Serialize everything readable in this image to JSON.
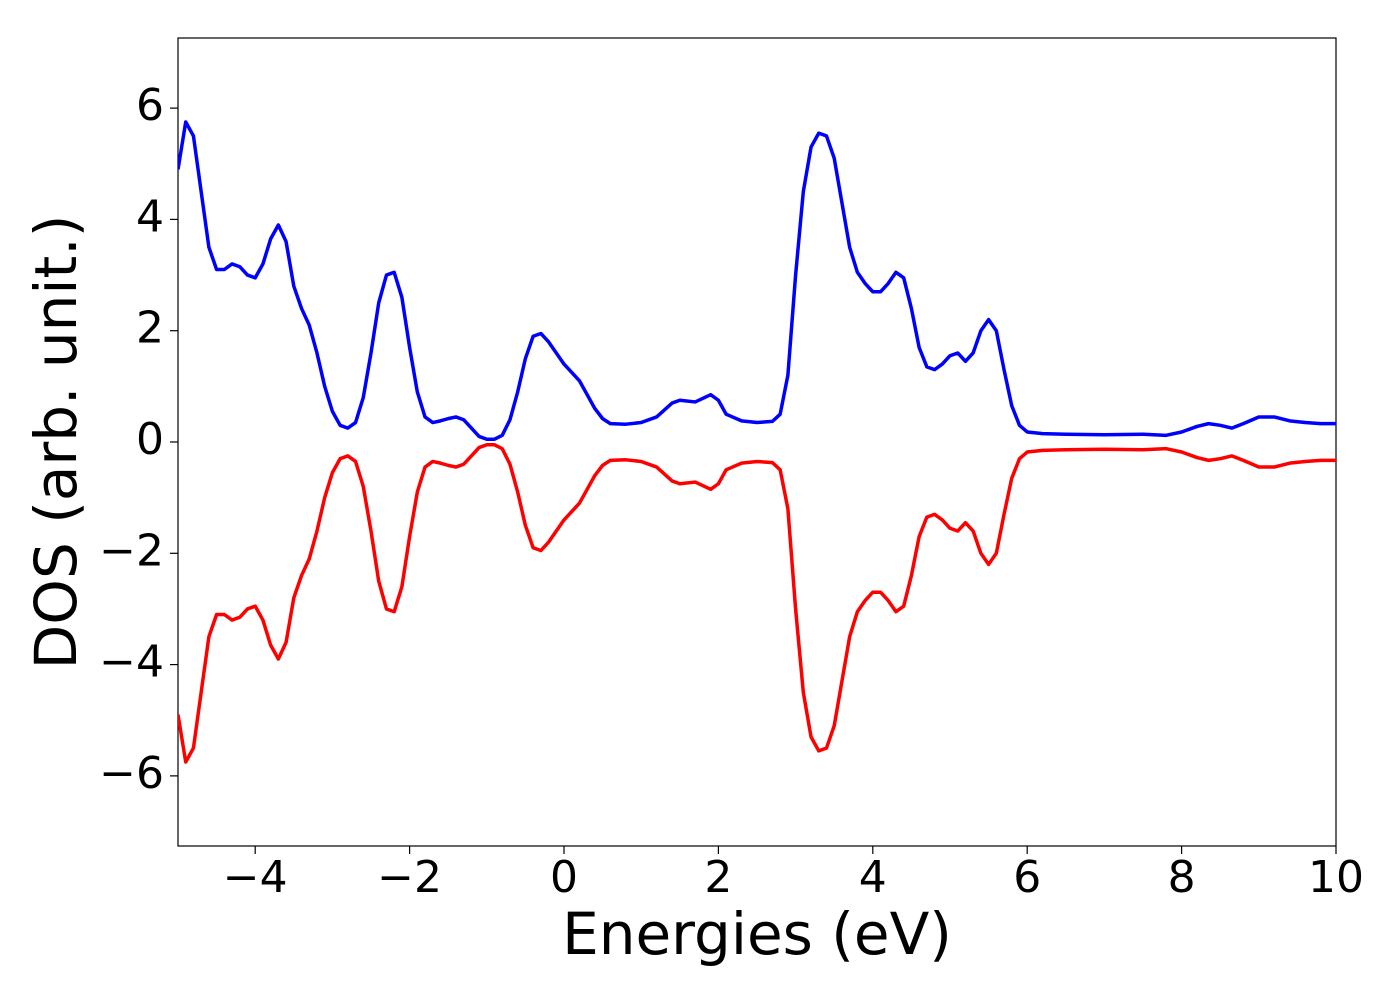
{
  "chart_data": {
    "type": "line",
    "xlabel": "Energies (eV)",
    "ylabel": "DOS (arb. unit.)",
    "x": [
      -5.0,
      -4.9,
      -4.8,
      -4.7,
      -4.6,
      -4.5,
      -4.4,
      -4.3,
      -4.2,
      -4.1,
      -4.0,
      -3.9,
      -3.8,
      -3.7,
      -3.6,
      -3.5,
      -3.4,
      -3.3,
      -3.2,
      -3.1,
      -3.0,
      -2.9,
      -2.8,
      -2.7,
      -2.6,
      -2.5,
      -2.4,
      -2.3,
      -2.2,
      -2.1,
      -2.0,
      -1.9,
      -1.8,
      -1.7,
      -1.6,
      -1.5,
      -1.4,
      -1.3,
      -1.2,
      -1.1,
      -1.0,
      -0.9,
      -0.8,
      -0.7,
      -0.6,
      -0.5,
      -0.4,
      -0.3,
      -0.2,
      -0.1,
      0.0,
      0.2,
      0.3,
      0.4,
      0.5,
      0.6,
      0.8,
      1.0,
      1.2,
      1.4,
      1.5,
      1.7,
      1.9,
      2.0,
      2.1,
      2.3,
      2.5,
      2.7,
      2.8,
      2.9,
      3.0,
      3.1,
      3.2,
      3.3,
      3.4,
      3.5,
      3.6,
      3.7,
      3.8,
      3.9,
      4.0,
      4.1,
      4.2,
      4.3,
      4.4,
      4.5,
      4.6,
      4.7,
      4.8,
      4.9,
      5.0,
      5.1,
      5.2,
      5.3,
      5.4,
      5.5,
      5.6,
      5.7,
      5.8,
      5.9,
      6.0,
      6.2,
      6.5,
      7.0,
      7.5,
      7.8,
      8.0,
      8.2,
      8.35,
      8.5,
      8.65,
      8.8,
      9.0,
      9.2,
      9.4,
      9.6,
      9.8,
      10.0
    ],
    "series": [
      {
        "color": "#0000ff",
        "values": [
          4.9,
          5.75,
          5.5,
          4.5,
          3.5,
          3.1,
          3.1,
          3.2,
          3.15,
          3.0,
          2.95,
          3.2,
          3.65,
          3.9,
          3.6,
          2.8,
          2.4,
          2.1,
          1.6,
          1.0,
          0.55,
          0.3,
          0.25,
          0.35,
          0.8,
          1.6,
          2.5,
          3.0,
          3.05,
          2.6,
          1.7,
          0.9,
          0.45,
          0.35,
          0.38,
          0.42,
          0.45,
          0.4,
          0.25,
          0.1,
          0.05,
          0.05,
          0.12,
          0.4,
          0.9,
          1.5,
          1.9,
          1.95,
          1.8,
          1.6,
          1.4,
          1.1,
          0.85,
          0.6,
          0.42,
          0.33,
          0.32,
          0.35,
          0.45,
          0.7,
          0.75,
          0.72,
          0.85,
          0.75,
          0.5,
          0.38,
          0.35,
          0.37,
          0.5,
          1.2,
          3.0,
          4.5,
          5.3,
          5.55,
          5.5,
          5.1,
          4.3,
          3.5,
          3.05,
          2.85,
          2.7,
          2.7,
          2.85,
          3.05,
          2.95,
          2.4,
          1.7,
          1.35,
          1.3,
          1.4,
          1.55,
          1.6,
          1.45,
          1.6,
          2.0,
          2.2,
          2.0,
          1.3,
          0.65,
          0.3,
          0.18,
          0.15,
          0.14,
          0.13,
          0.14,
          0.12,
          0.18,
          0.28,
          0.33,
          0.3,
          0.25,
          0.33,
          0.45,
          0.45,
          0.38,
          0.35,
          0.33,
          0.33
        ]
      },
      {
        "color": "#ff0000",
        "values": [
          -4.9,
          -5.75,
          -5.5,
          -4.5,
          -3.5,
          -3.1,
          -3.1,
          -3.2,
          -3.15,
          -3.0,
          -2.95,
          -3.2,
          -3.65,
          -3.9,
          -3.6,
          -2.8,
          -2.4,
          -2.1,
          -1.6,
          -1.0,
          -0.55,
          -0.3,
          -0.25,
          -0.35,
          -0.8,
          -1.6,
          -2.5,
          -3.0,
          -3.05,
          -2.6,
          -1.7,
          -0.9,
          -0.45,
          -0.35,
          -0.38,
          -0.42,
          -0.45,
          -0.4,
          -0.25,
          -0.1,
          -0.05,
          -0.05,
          -0.12,
          -0.4,
          -0.9,
          -1.5,
          -1.9,
          -1.95,
          -1.8,
          -1.6,
          -1.4,
          -1.1,
          -0.85,
          -0.6,
          -0.42,
          -0.33,
          -0.32,
          -0.35,
          -0.45,
          -0.7,
          -0.75,
          -0.72,
          -0.85,
          -0.75,
          -0.5,
          -0.38,
          -0.35,
          -0.37,
          -0.5,
          -1.2,
          -3.0,
          -4.5,
          -5.3,
          -5.55,
          -5.5,
          -5.1,
          -4.3,
          -3.5,
          -3.05,
          -2.85,
          -2.7,
          -2.7,
          -2.85,
          -3.05,
          -2.95,
          -2.4,
          -1.7,
          -1.35,
          -1.3,
          -1.4,
          -1.55,
          -1.6,
          -1.45,
          -1.6,
          -2.0,
          -2.2,
          -2.0,
          -1.3,
          -0.65,
          -0.3,
          -0.18,
          -0.15,
          -0.14,
          -0.13,
          -0.14,
          -0.12,
          -0.18,
          -0.28,
          -0.33,
          -0.3,
          -0.25,
          -0.33,
          -0.45,
          -0.45,
          -0.38,
          -0.35,
          -0.33,
          -0.33
        ]
      }
    ],
    "xlim": [
      -5,
      10
    ],
    "xticks": [
      {
        "value": -4,
        "label": "−4"
      },
      {
        "value": -2,
        "label": "−2"
      },
      0,
      2,
      4,
      6,
      8,
      10
    ],
    "ylim": [
      -7.26,
      7.26
    ],
    "yticks": [
      {
        "value": -6,
        "label": "−6"
      },
      {
        "value": -4,
        "label": "−4"
      },
      {
        "value": -2,
        "label": "−2"
      },
      0,
      2,
      4,
      6
    ],
    "grid": false
  }
}
